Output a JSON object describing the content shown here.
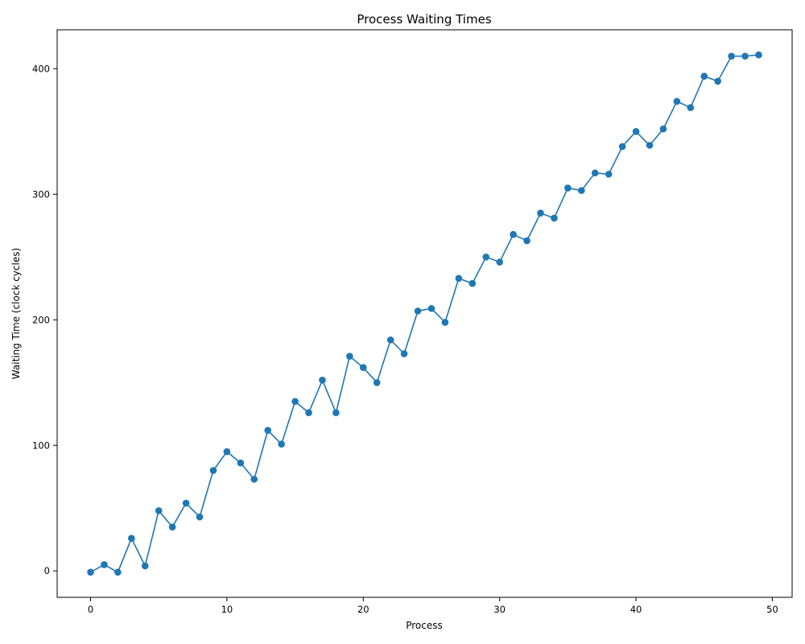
{
  "chart_data": {
    "type": "line",
    "title": "Process Waiting Times",
    "xlabel": "Process",
    "ylabel": "Waiting Time (clock cycles)",
    "xlim": [
      -2.45,
      51.45
    ],
    "ylim": [
      -21,
      431
    ],
    "xticks": [
      0,
      10,
      20,
      30,
      40,
      50
    ],
    "yticks": [
      0,
      100,
      200,
      300,
      400
    ],
    "grid": false,
    "color": "#1f77b4",
    "marker": "circle",
    "series": [
      {
        "x": [
          0,
          1,
          2,
          3,
          4,
          5,
          6,
          7,
          8,
          9,
          10,
          11,
          12,
          13,
          14,
          15,
          16,
          17,
          18,
          19,
          20,
          21,
          22,
          23,
          24,
          25,
          26,
          27,
          28,
          29,
          30,
          31,
          32,
          33,
          34,
          35,
          36,
          37,
          38,
          39,
          40,
          41,
          42,
          43,
          44,
          45,
          46,
          47,
          48,
          49
        ],
        "values": [
          -1,
          5,
          -1,
          26,
          4,
          48,
          35,
          54,
          43,
          80,
          95,
          86,
          73,
          112,
          101,
          135,
          126,
          152,
          126,
          171,
          162,
          150,
          184,
          173,
          207,
          209,
          198,
          233,
          229,
          250,
          246,
          268,
          263,
          285,
          281,
          305,
          303,
          317,
          316,
          338,
          350,
          339,
          352,
          374,
          369,
          394,
          390,
          410,
          410,
          411
        ]
      }
    ]
  }
}
